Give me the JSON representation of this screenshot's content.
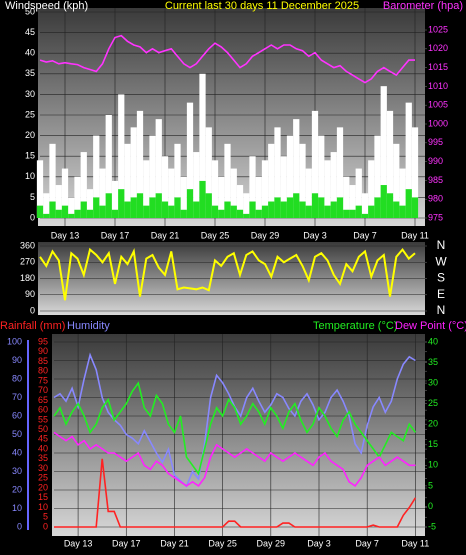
{
  "chart_data": [
    {
      "type": "bar",
      "title": "Current last 30 days 11 December 2025",
      "ylabel": "Windspeed (kph)",
      "y2label": "Barometer (hpa)",
      "grid": true,
      "x": [
        0,
        0.5,
        1,
        1.5,
        2,
        2.5,
        3,
        3.5,
        4,
        4.5,
        5,
        5.5,
        6,
        6.5,
        7,
        7.5,
        8,
        8.5,
        9,
        9.5,
        10,
        10.5,
        11,
        11.5,
        12,
        12.5,
        13,
        13.5,
        14,
        14.5,
        15,
        15.5,
        16,
        16.5,
        17,
        17.5,
        18,
        18.5,
        19,
        19.5,
        20,
        20.5,
        21,
        21.5,
        22,
        22.5,
        23,
        23.5,
        24,
        24.5,
        25,
        25.5,
        26,
        26.5,
        27,
        27.5,
        28,
        28.5,
        29,
        29.5,
        30
      ],
      "xlim": [
        0,
        30.8
      ],
      "xticks": [
        {
          "value": 2,
          "label": "Day 13"
        },
        {
          "value": 6,
          "label": "Day 17"
        },
        {
          "value": 10,
          "label": "Day 21"
        },
        {
          "value": 14,
          "label": "Day 25"
        },
        {
          "value": 18,
          "label": "Day 29"
        },
        {
          "value": 22,
          "label": "Day 3"
        },
        {
          "value": 26,
          "label": "Day 7"
        },
        {
          "value": 30,
          "label": "Day 11"
        }
      ],
      "ylim": [
        0,
        50
      ],
      "yticks": [
        0,
        5,
        10,
        15,
        20,
        25,
        30,
        35,
        40,
        45,
        50
      ],
      "y2lim": [
        975,
        1025
      ],
      "y2ticks": [
        975,
        980,
        985,
        990,
        995,
        1000,
        1005,
        1010,
        1015,
        1020,
        1025
      ],
      "series": [
        {
          "style": "bar",
          "axis": "y",
          "color": "#ffffff",
          "values": [
            14,
            6,
            18,
            8,
            12,
            5,
            10,
            16,
            7,
            20,
            12,
            25,
            9,
            30,
            18,
            22,
            26,
            14,
            20,
            24,
            15,
            12,
            18,
            10,
            28,
            16,
            35,
            22,
            14,
            10,
            18,
            12,
            8,
            6,
            15,
            10,
            14,
            18,
            22,
            15,
            20,
            24,
            18,
            12,
            26,
            20,
            14,
            16,
            22,
            10,
            8,
            12,
            6,
            14,
            20,
            32,
            26,
            18,
            12,
            28,
            22
          ]
        },
        {
          "style": "bar",
          "axis": "y",
          "color": "#22dd22",
          "values": [
            3,
            1,
            4,
            2,
            3,
            1,
            2,
            4,
            2,
            5,
            3,
            6,
            2,
            7,
            4,
            5,
            6,
            3,
            5,
            6,
            4,
            3,
            5,
            2,
            7,
            4,
            9,
            6,
            3,
            2,
            4,
            3,
            2,
            1,
            4,
            2,
            3,
            4,
            5,
            4,
            5,
            6,
            4,
            3,
            6,
            5,
            3,
            4,
            5,
            2,
            2,
            3,
            1,
            3,
            5,
            8,
            6,
            4,
            3,
            7,
            5
          ]
        },
        {
          "style": "line",
          "axis": "y2",
          "color": "#ff33ff",
          "values": [
            1017,
            1016.5,
            1016.8,
            1016,
            1016.3,
            1016,
            1015.8,
            1015,
            1014.5,
            1014,
            1016,
            1020,
            1023,
            1023.5,
            1022,
            1021,
            1020.5,
            1019,
            1020,
            1019,
            1019.5,
            1020,
            1018,
            1016,
            1015,
            1016,
            1018,
            1020,
            1021.5,
            1020.5,
            1019,
            1017,
            1015,
            1016,
            1018,
            1019,
            1020,
            1021,
            1020,
            1021,
            1021,
            1020,
            1019.5,
            1018,
            1019,
            1017,
            1016,
            1015,
            1015.5,
            1014,
            1013,
            1012,
            1011,
            1012,
            1014,
            1015,
            1014,
            1013,
            1015,
            1017,
            1017
          ]
        }
      ]
    },
    {
      "type": "line",
      "grid": true,
      "x": [
        0,
        0.5,
        1,
        1.5,
        2,
        2.5,
        3,
        3.5,
        4,
        4.5,
        5,
        5.5,
        6,
        6.5,
        7,
        7.5,
        8,
        8.5,
        9,
        9.5,
        10,
        10.5,
        11,
        11.5,
        12,
        12.5,
        13,
        13.5,
        14,
        14.5,
        15,
        15.5,
        16,
        16.5,
        17,
        17.5,
        18,
        18.5,
        19,
        19.5,
        20,
        20.5,
        21,
        21.5,
        22,
        22.5,
        23,
        23.5,
        24,
        24.5,
        25,
        25.5,
        26,
        26.5,
        27,
        27.5,
        28,
        28.5,
        29,
        29.5,
        30
      ],
      "xlim": [
        0,
        30.8
      ],
      "ylim": [
        0,
        360
      ],
      "yticks": [
        0,
        90,
        180,
        270,
        360
      ],
      "y2lim": [
        0,
        360
      ],
      "y2ticks": [
        {
          "value": 360,
          "label": "N"
        },
        {
          "value": 270,
          "label": "W"
        },
        {
          "value": 180,
          "label": "S"
        },
        {
          "value": 90,
          "label": "E"
        },
        {
          "value": 0,
          "label": "N"
        }
      ],
      "series": [
        {
          "style": "line",
          "axis": "y",
          "color": "#ffff00",
          "values": [
            300,
            250,
            330,
            280,
            60,
            320,
            290,
            200,
            340,
            310,
            270,
            320,
            150,
            300,
            260,
            330,
            80,
            290,
            310,
            240,
            200,
            330,
            120,
            130,
            125,
            120,
            130,
            115,
            280,
            250,
            300,
            320,
            200,
            310,
            330,
            280,
            260,
            190,
            300,
            270,
            290,
            310,
            250,
            170,
            300,
            320,
            280,
            200,
            150,
            260,
            220,
            300,
            330,
            190,
            280,
            310,
            80,
            300,
            340,
            290,
            320
          ]
        }
      ]
    },
    {
      "type": "line",
      "grid": true,
      "x": [
        0,
        0.5,
        1,
        1.5,
        2,
        2.5,
        3,
        3.5,
        4,
        4.5,
        5,
        5.5,
        6,
        6.5,
        7,
        7.5,
        8,
        8.5,
        9,
        9.5,
        10,
        10.5,
        11,
        11.5,
        12,
        12.5,
        13,
        13.5,
        14,
        14.5,
        15,
        15.5,
        16,
        16.5,
        17,
        17.5,
        18,
        18.5,
        19,
        19.5,
        20,
        20.5,
        21,
        21.5,
        22,
        22.5,
        23,
        23.5,
        24,
        24.5,
        25,
        25.5,
        26,
        26.5,
        27,
        27.5,
        28,
        28.5,
        29,
        29.5,
        30
      ],
      "xlim": [
        0,
        30.8
      ],
      "xticks": [
        {
          "value": 2,
          "label": "Day 13"
        },
        {
          "value": 6,
          "label": "Day 17"
        },
        {
          "value": 10,
          "label": "Day 21"
        },
        {
          "value": 14,
          "label": "Day 25"
        },
        {
          "value": 18,
          "label": "Day 29"
        },
        {
          "value": 22,
          "label": "Day 3"
        },
        {
          "value": 26,
          "label": "Day 7"
        },
        {
          "value": 30,
          "label": "Day 11"
        }
      ],
      "ylim": [
        0,
        100
      ],
      "yticks": [
        0,
        10,
        20,
        30,
        40,
        50,
        60,
        70,
        80,
        90,
        100
      ],
      "y2lim": [
        -5,
        40
      ],
      "y2ticks": [
        -5,
        0,
        5,
        10,
        15,
        20,
        25,
        30,
        35,
        40
      ],
      "y3lim": [
        0,
        95
      ],
      "y3ticks": [
        0,
        5,
        10,
        15,
        20,
        25,
        30,
        35,
        40,
        45,
        50,
        55,
        60,
        65,
        70,
        75,
        80,
        85,
        90,
        95
      ],
      "series": [
        {
          "name": "Rainfall (mm)",
          "style": "line",
          "axis": "y3",
          "color": "#ff2222",
          "values": [
            0,
            0,
            0,
            0,
            0,
            0,
            0,
            0,
            35,
            8,
            8,
            0,
            0,
            0,
            0,
            0,
            0,
            0,
            0,
            0,
            0,
            0,
            0,
            0,
            0,
            0,
            0,
            0,
            0,
            3,
            3,
            0,
            0,
            0,
            0,
            0,
            0,
            0,
            2,
            2,
            0,
            0,
            0,
            0,
            0,
            0,
            0,
            0,
            0,
            0,
            0,
            0,
            0,
            1,
            0,
            0,
            0,
            0,
            6,
            10,
            15
          ]
        },
        {
          "name": "Humidity",
          "style": "line",
          "axis": "y",
          "color": "#8888ff",
          "values": [
            70,
            72,
            68,
            75,
            65,
            80,
            93,
            85,
            70,
            62,
            58,
            55,
            50,
            48,
            45,
            52,
            46,
            40,
            35,
            42,
            28,
            25,
            22,
            30,
            26,
            45,
            70,
            82,
            78,
            72,
            65,
            60,
            70,
            75,
            68,
            62,
            66,
            72,
            70,
            64,
            60,
            68,
            72,
            66,
            58,
            62,
            70,
            74,
            68,
            60,
            45,
            40,
            55,
            65,
            70,
            62,
            68,
            80,
            88,
            92,
            90
          ]
        },
        {
          "name": "Temperature (°C)",
          "style": "line",
          "axis": "y2",
          "color": "#22ee22",
          "values": [
            22,
            24,
            20,
            23,
            25,
            22,
            18,
            20,
            24,
            26,
            21,
            23,
            25,
            28,
            30,
            24,
            22,
            27,
            25,
            20,
            18,
            22,
            12,
            10,
            8,
            14,
            20,
            24,
            22,
            26,
            24,
            20,
            22,
            25,
            23,
            20,
            24,
            22,
            19,
            23,
            25,
            21,
            18,
            20,
            24,
            22,
            19,
            17,
            21,
            23,
            20,
            18,
            16,
            14,
            12,
            15,
            18,
            17,
            16,
            20,
            18
          ]
        },
        {
          "name": "Dew Point (°C)",
          "style": "line",
          "axis": "y2",
          "color": "#ff22ff",
          "values": [
            18,
            17,
            16,
            17,
            15,
            16,
            14,
            15,
            14,
            13,
            13,
            12,
            11,
            12,
            13,
            10,
            9,
            11,
            10,
            8,
            7,
            6,
            5,
            6,
            5,
            7,
            12,
            15,
            14,
            13,
            12,
            13,
            14,
            13,
            12,
            11,
            13,
            12,
            11,
            12,
            13,
            12,
            11,
            10,
            12,
            13,
            11,
            10,
            9,
            6,
            5,
            7,
            10,
            11,
            12,
            10,
            11,
            12,
            11,
            10,
            10
          ]
        }
      ]
    }
  ]
}
